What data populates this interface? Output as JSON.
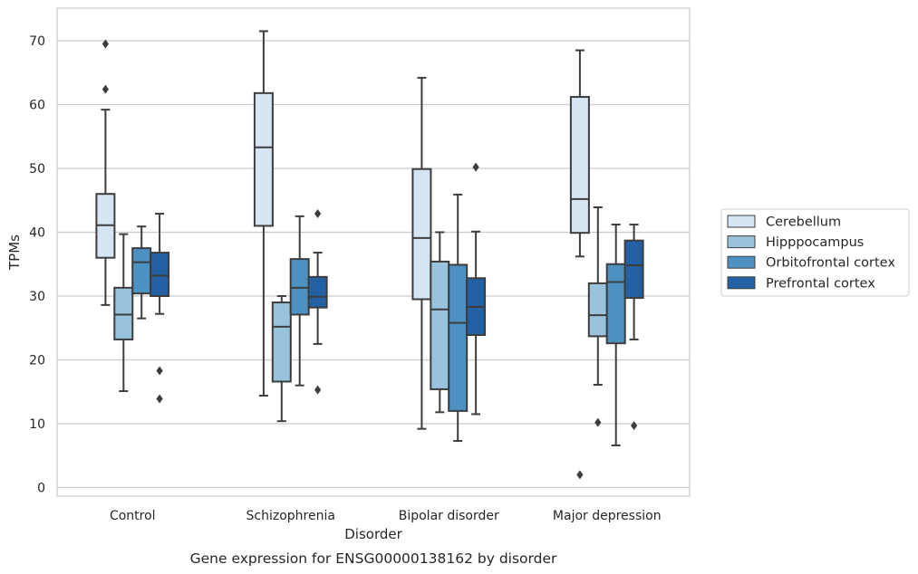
{
  "chart_data": {
    "type": "box",
    "title": "",
    "caption": "Gene expression for ENSG00000138162 by disorder",
    "xlabel": "Disorder",
    "ylabel": "TPMs",
    "ylim": [
      -1.3,
      75
    ],
    "yticks": [
      0,
      10,
      20,
      30,
      40,
      50,
      60,
      70
    ],
    "grid": "horizontal",
    "legend_position": "right",
    "categories": [
      "Control",
      "Schizophrenia",
      "Bipolar disorder",
      "Major depression"
    ],
    "series": [
      {
        "name": "Cerebellum",
        "color": "#d6e5f4",
        "boxes": [
          {
            "whislo": 28.6,
            "q1": 36.0,
            "med": 41.1,
            "q3": 46.0,
            "whishi": 59.2,
            "fliers": [
              62.4,
              69.5
            ]
          },
          {
            "whislo": 14.4,
            "q1": 41.0,
            "med": 53.3,
            "q3": 61.8,
            "whishi": 71.5,
            "fliers": []
          },
          {
            "whislo": 9.2,
            "q1": 29.5,
            "med": 39.1,
            "q3": 49.9,
            "whishi": 64.2,
            "fliers": []
          },
          {
            "whislo": 36.2,
            "q1": 39.9,
            "med": 45.2,
            "q3": 61.2,
            "whishi": 68.5,
            "fliers": [
              2.0
            ]
          }
        ]
      },
      {
        "name": "Hipppocampus",
        "color": "#99c3dd",
        "boxes": [
          {
            "whislo": 15.1,
            "q1": 23.2,
            "med": 27.1,
            "q3": 31.3,
            "whishi": 39.7,
            "fliers": []
          },
          {
            "whislo": 10.4,
            "q1": 16.6,
            "med": 25.2,
            "q3": 29.0,
            "whishi": 30.0,
            "fliers": []
          },
          {
            "whislo": 11.8,
            "q1": 15.4,
            "med": 27.9,
            "q3": 35.4,
            "whishi": 40.0,
            "fliers": []
          },
          {
            "whislo": 16.1,
            "q1": 23.7,
            "med": 27.0,
            "q3": 32.0,
            "whishi": 43.9,
            "fliers": [
              10.2
            ]
          }
        ]
      },
      {
        "name": "Orbitofrontal cortex",
        "color": "#4d91c2",
        "boxes": [
          {
            "whislo": 26.5,
            "q1": 30.4,
            "med": 35.3,
            "q3": 37.5,
            "whishi": 40.9,
            "fliers": []
          },
          {
            "whislo": 16.0,
            "q1": 27.1,
            "med": 31.3,
            "q3": 35.8,
            "whishi": 42.5,
            "fliers": []
          },
          {
            "whislo": 7.3,
            "q1": 12.0,
            "med": 25.8,
            "q3": 34.9,
            "whishi": 45.9,
            "fliers": []
          },
          {
            "whislo": 6.6,
            "q1": 22.6,
            "med": 32.2,
            "q3": 35.0,
            "whishi": 41.2,
            "fliers": []
          }
        ]
      },
      {
        "name": "Prefrontal cortex",
        "color": "#2261a4",
        "boxes": [
          {
            "whislo": 27.2,
            "q1": 30.0,
            "med": 33.2,
            "q3": 36.8,
            "whishi": 42.9,
            "fliers": [
              18.3,
              13.9
            ]
          },
          {
            "whislo": 22.5,
            "q1": 28.2,
            "med": 29.9,
            "q3": 33.0,
            "whishi": 36.8,
            "fliers": [
              15.3,
              42.9
            ]
          },
          {
            "whislo": 11.5,
            "q1": 23.9,
            "med": 28.3,
            "q3": 32.8,
            "whishi": 40.1,
            "fliers": [
              50.2
            ]
          },
          {
            "whislo": 23.2,
            "q1": 29.7,
            "med": 34.8,
            "q3": 38.7,
            "whishi": 41.2,
            "fliers": [
              9.7
            ]
          }
        ]
      }
    ]
  }
}
